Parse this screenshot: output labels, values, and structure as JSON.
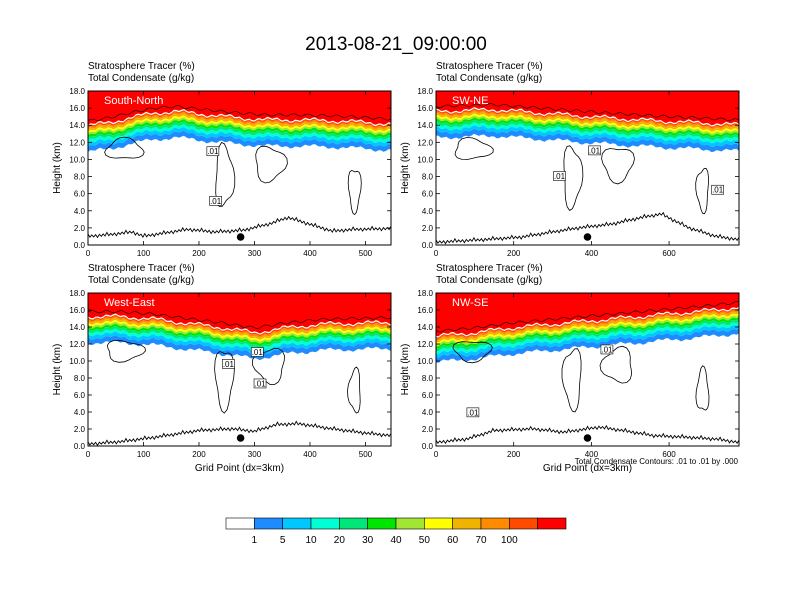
{
  "title": "2013-08-21_09:00:00",
  "subtitle_line1": "Stratosphere Tracer   (%)",
  "subtitle_line2": "Total Condensate   (g/kg)",
  "ylabel": "Height (km)",
  "xlabel": "Grid Point (dx=3km)",
  "contour_note": "Total Condensate Contours: .01 to .01 by .000",
  "contour_level_label": ".01",
  "colorbar": {
    "levels": [
      "1",
      "5",
      "10",
      "20",
      "30",
      "40",
      "50",
      "60",
      "70",
      "100"
    ],
    "colors": [
      "#ffffff",
      "#1e8cff",
      "#00c8ff",
      "#00ffd2",
      "#00e678",
      "#00e600",
      "#a0e632",
      "#ffff00",
      "#f0b400",
      "#ff8c00",
      "#ff4b00",
      "#ff0000"
    ]
  },
  "chart_data": [
    {
      "type": "heatmap",
      "panel_label": "South-North",
      "title_left_line1": "Stratosphere Tracer   (%)",
      "title_left_line2": "Total Condensate   (g/kg)",
      "xlim": [
        0,
        546
      ],
      "ylim": [
        0,
        18
      ],
      "xticks": [
        0,
        100,
        200,
        300,
        400,
        500
      ],
      "yticks": [
        0,
        2,
        4,
        6,
        8,
        10,
        12,
        14,
        16,
        18
      ],
      "tropopause_km": [
        [
          0,
          12.6
        ],
        [
          40,
          13.0
        ],
        [
          80,
          13.6
        ],
        [
          120,
          14.1
        ],
        [
          160,
          14.3
        ],
        [
          200,
          14.0
        ],
        [
          260,
          13.6
        ],
        [
          320,
          13.3
        ],
        [
          380,
          13.3
        ],
        [
          440,
          13.2
        ],
        [
          500,
          13.0
        ],
        [
          546,
          12.8
        ]
      ],
      "terrain_km": [
        [
          0,
          1.0
        ],
        [
          40,
          1.2
        ],
        [
          80,
          1.5
        ],
        [
          100,
          1.0
        ],
        [
          140,
          1.4
        ],
        [
          180,
          1.8
        ],
        [
          230,
          1.5
        ],
        [
          280,
          1.7
        ],
        [
          330,
          2.5
        ],
        [
          360,
          3.2
        ],
        [
          400,
          2.4
        ],
        [
          440,
          1.6
        ],
        [
          480,
          1.8
        ],
        [
          546,
          1.9
        ]
      ],
      "marker_x": 275,
      "contour_labels": [
        {
          "x": 225,
          "y": 10.9
        },
        {
          "x": 230,
          "y": 5.1
        }
      ]
    },
    {
      "type": "heatmap",
      "panel_label": "SW-NE",
      "title_left_line1": "Stratosphere Tracer   (%)",
      "title_left_line2": "Total Condensate   (g/kg)",
      "xlim": [
        0,
        780
      ],
      "ylim": [
        0,
        18
      ],
      "xticks": [
        0,
        200,
        400,
        600
      ],
      "yticks": [
        0,
        2,
        4,
        6,
        8,
        10,
        12,
        14,
        16,
        18
      ],
      "tropopause_km": [
        [
          0,
          14.3
        ],
        [
          150,
          14.5
        ],
        [
          300,
          14.0
        ],
        [
          420,
          13.6
        ],
        [
          560,
          13.2
        ],
        [
          700,
          12.9
        ],
        [
          780,
          12.7
        ]
      ],
      "terrain_km": [
        [
          0,
          0.3
        ],
        [
          120,
          0.6
        ],
        [
          220,
          0.9
        ],
        [
          300,
          1.5
        ],
        [
          370,
          2.0
        ],
        [
          450,
          2.4
        ],
        [
          530,
          3.2
        ],
        [
          580,
          3.6
        ],
        [
          650,
          2.0
        ],
        [
          720,
          1.0
        ],
        [
          780,
          0.6
        ]
      ],
      "marker_x": 390,
      "contour_labels": [
        {
          "x": 408,
          "y": 11.0
        },
        {
          "x": 318,
          "y": 8.0
        },
        {
          "x": 725,
          "y": 6.4
        }
      ]
    },
    {
      "type": "heatmap",
      "panel_label": "West-East",
      "title_left_line1": "Stratosphere Tracer   (%)",
      "title_left_line2": "Total Condensate   (g/kg)",
      "xlim": [
        0,
        546
      ],
      "ylim": [
        0,
        18
      ],
      "xticks": [
        0,
        100,
        200,
        300,
        400,
        500
      ],
      "yticks": [
        0,
        2,
        4,
        6,
        8,
        10,
        12,
        14,
        16,
        18
      ],
      "tropopause_km": [
        [
          0,
          13.9
        ],
        [
          60,
          13.9
        ],
        [
          120,
          13.6
        ],
        [
          180,
          13.1
        ],
        [
          240,
          12.6
        ],
        [
          300,
          12.0
        ],
        [
          360,
          12.6
        ],
        [
          420,
          13.0
        ],
        [
          480,
          13.1
        ],
        [
          546,
          13.2
        ]
      ],
      "terrain_km": [
        [
          0,
          0.2
        ],
        [
          60,
          0.5
        ],
        [
          120,
          1.0
        ],
        [
          200,
          1.8
        ],
        [
          260,
          2.0
        ],
        [
          300,
          1.7
        ],
        [
          340,
          2.5
        ],
        [
          380,
          2.6
        ],
        [
          440,
          2.0
        ],
        [
          500,
          1.5
        ],
        [
          546,
          1.2
        ]
      ],
      "marker_x": 275,
      "contour_labels": [
        {
          "x": 305,
          "y": 11.0
        },
        {
          "x": 253,
          "y": 9.6
        },
        {
          "x": 310,
          "y": 7.3
        }
      ]
    },
    {
      "type": "heatmap",
      "panel_label": "NW-SE",
      "title_left_line1": "Stratosphere Tracer   (%)",
      "title_left_line2": "Total Condensate   (g/kg)",
      "xlim": [
        0,
        780
      ],
      "ylim": [
        0,
        18
      ],
      "xticks": [
        0,
        200,
        400,
        600
      ],
      "yticks": [
        0,
        2,
        4,
        6,
        8,
        10,
        12,
        14,
        16,
        18
      ],
      "tropopause_km": [
        [
          0,
          11.6
        ],
        [
          100,
          12.0
        ],
        [
          200,
          12.6
        ],
        [
          300,
          13.0
        ],
        [
          400,
          13.4
        ],
        [
          500,
          13.8
        ],
        [
          600,
          14.2
        ],
        [
          700,
          14.6
        ],
        [
          780,
          15.0
        ]
      ],
      "terrain_km": [
        [
          0,
          0.4
        ],
        [
          80,
          0.8
        ],
        [
          150,
          1.8
        ],
        [
          250,
          2.0
        ],
        [
          330,
          1.6
        ],
        [
          420,
          2.2
        ],
        [
          480,
          1.8
        ],
        [
          560,
          1.2
        ],
        [
          650,
          1.0
        ],
        [
          720,
          0.8
        ],
        [
          780,
          0.4
        ]
      ],
      "marker_x": 390,
      "contour_labels": [
        {
          "x": 440,
          "y": 11.3
        },
        {
          "x": 95,
          "y": 3.9
        }
      ]
    }
  ]
}
